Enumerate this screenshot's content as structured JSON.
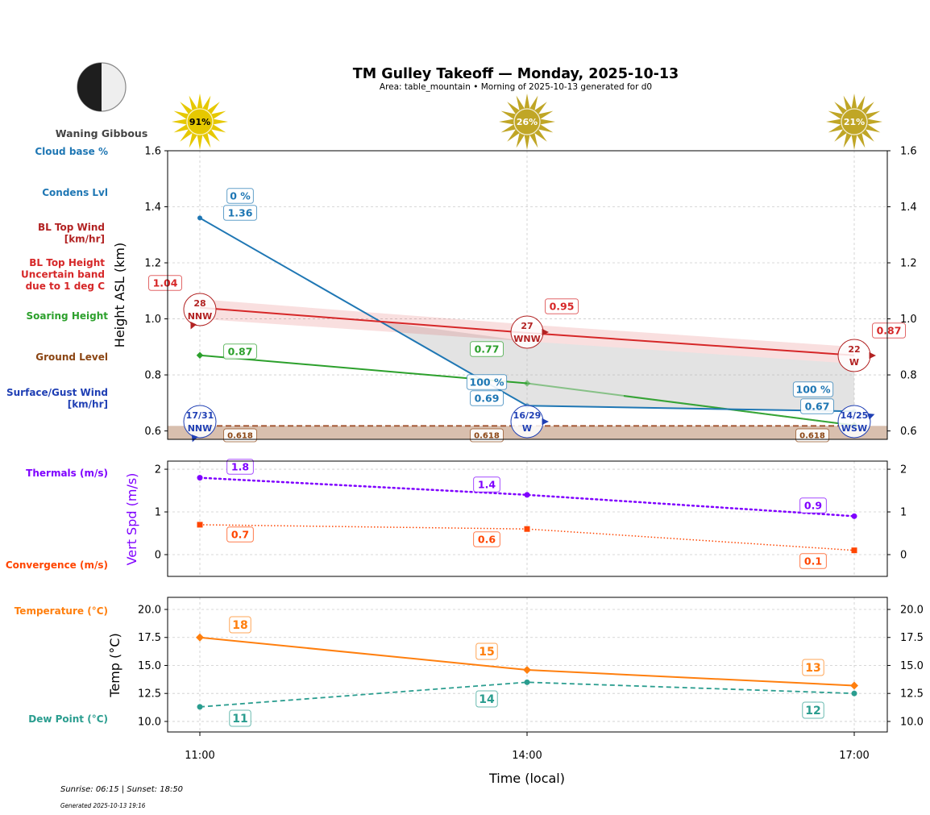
{
  "header": {
    "title": "TM Gulley Takeoff — Monday, 2025-10-13",
    "subtitle": "Area: table_mountain • Morning of 2025-10-13 generated for d0",
    "moon_phase": "Waning Gibbous"
  },
  "footer": {
    "sun_times": "Sunrise: 06:15 | Sunset: 18:50",
    "generated": "Generated 2025-10-13 19:16"
  },
  "colors": {
    "cloud": "#1f77b4",
    "bl_wind": "#b22222",
    "bl_height": "#d62728",
    "soaring": "#2ca02c",
    "ground": "#8b4513",
    "surface_wind": "#1f3fb4",
    "thermals": "#7f00ff",
    "convergence": "#ff4500",
    "temperature": "#ff7f0e",
    "dewpoint": "#2a9d8f",
    "sun_bright": "#e6c800",
    "sun_dim": "#c0a626"
  },
  "chart_data": [
    {
      "type": "line",
      "panel": "height",
      "ylabel": "Height ASL (km)",
      "ylim": [
        0.57,
        1.6
      ],
      "yticks": [
        "0.6",
        "0.8",
        "1.0",
        "1.2",
        "1.4",
        "1.6"
      ],
      "ytick_values": [
        0.6,
        0.8,
        1.0,
        1.2,
        1.4,
        1.6
      ],
      "x": [
        "11:00",
        "14:00",
        "17:00"
      ],
      "grid": true,
      "side_labels": [
        {
          "text": "Cloud base %",
          "color_key": "cloud"
        },
        {
          "text": "Condens Lvl",
          "color_key": "cloud"
        },
        {
          "text": "BL Top Wind\n[km/hr]",
          "color_key": "bl_wind"
        },
        {
          "text": "BL Top Height\nUncertain band\ndue to 1 deg C",
          "color_key": "bl_height"
        },
        {
          "text": "Soaring Height",
          "color_key": "soaring"
        },
        {
          "text": "Ground Level",
          "color_key": "ground"
        },
        {
          "text": "Surface/Gust Wind\n[km/hr]",
          "color_key": "surface_wind"
        }
      ],
      "sun_cover": [
        {
          "time": "11:00",
          "label": "91%",
          "bright": true
        },
        {
          "time": "14:00",
          "label": "26%",
          "bright": false
        },
        {
          "time": "17:00",
          "label": "21%",
          "bright": false
        }
      ],
      "series": [
        {
          "name": "Condens Lvl",
          "values": [
            1.36,
            0.69,
            0.67
          ],
          "labels": [
            "1.36",
            "0.69",
            "0.67"
          ],
          "cloud_pct": [
            "0 %",
            "100 %",
            "100 %"
          ]
        },
        {
          "name": "BL Top Height",
          "values": [
            1.04,
            0.95,
            0.87
          ],
          "labels": [
            "1.04",
            "0.95",
            "0.87"
          ],
          "band_upper": [
            1.07,
            0.98,
            0.9
          ],
          "band_lower": [
            1.0,
            0.92,
            0.84
          ]
        },
        {
          "name": "Soaring Height",
          "values": [
            0.87,
            0.77,
            0.62
          ],
          "labels": [
            "0.87",
            "0.77",
            ""
          ]
        },
        {
          "name": "Ground Level",
          "values": [
            0.618,
            0.618,
            0.618
          ],
          "labels": [
            "0.618",
            "0.618",
            "0.618"
          ]
        }
      ],
      "bl_top_wind": [
        {
          "speed": "28",
          "dir": "NNW"
        },
        {
          "speed": "27",
          "dir": "WNW"
        },
        {
          "speed": "22",
          "dir": "W"
        }
      ],
      "surface_wind": [
        {
          "speed": "17/31",
          "dir": "NNW"
        },
        {
          "speed": "16/29",
          "dir": "W"
        },
        {
          "speed": "14/25",
          "dir": "WSW"
        }
      ]
    },
    {
      "type": "line",
      "panel": "vertical_speed",
      "ylabel": "Vert Spd (m/s)",
      "ylim": [
        -0.51,
        2.19
      ],
      "yticks": [
        "0",
        "1",
        "2"
      ],
      "ytick_values": [
        0,
        1,
        2
      ],
      "x": [
        "11:00",
        "14:00",
        "17:00"
      ],
      "grid": true,
      "side_labels": [
        {
          "text": "Thermals (m/s)",
          "color_key": "thermals"
        },
        {
          "text": "Convergence (m/s)",
          "color_key": "convergence"
        }
      ],
      "series": [
        {
          "name": "Thermals (m/s)",
          "values": [
            1.8,
            1.4,
            0.9
          ],
          "labels": [
            "1.8",
            "1.4",
            "0.9"
          ]
        },
        {
          "name": "Convergence (m/s)",
          "values": [
            0.7,
            0.6,
            0.1
          ],
          "labels": [
            "0.7",
            "0.6",
            "0.1"
          ]
        }
      ]
    },
    {
      "type": "line",
      "panel": "temperature",
      "ylabel": "Temp (°C)",
      "xlabel": "Time (local)",
      "ylim": [
        9.06,
        21.08
      ],
      "yticks": [
        "10.0",
        "12.5",
        "15.0",
        "17.5",
        "20.0"
      ],
      "ytick_values": [
        10,
        12.5,
        15,
        17.5,
        20
      ],
      "x": [
        "11:00",
        "14:00",
        "17:00"
      ],
      "grid": true,
      "side_labels": [
        {
          "text": "Temperature (°C)",
          "color_key": "temperature"
        },
        {
          "text": "Dew Point (°C)",
          "color_key": "dewpoint"
        }
      ],
      "series": [
        {
          "name": "Temperature (°C)",
          "values": [
            17.5,
            14.6,
            13.2
          ],
          "labels": [
            "18",
            "15",
            "13"
          ]
        },
        {
          "name": "Dew Point (°C)",
          "values": [
            11.3,
            13.5,
            12.5
          ],
          "labels": [
            "11",
            "14",
            "12"
          ]
        }
      ]
    }
  ]
}
